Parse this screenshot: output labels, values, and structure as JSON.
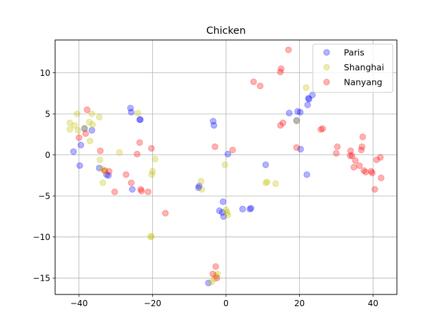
{
  "chart_data": {
    "type": "scatter",
    "title": "Chicken",
    "xlabel": "",
    "ylabel": "",
    "xlim": [
      -46.5,
      46.5
    ],
    "ylim": [
      -17,
      14
    ],
    "xticks": [
      -40,
      -20,
      0,
      20,
      40
    ],
    "yticks": [
      -15,
      -10,
      -5,
      0,
      5,
      10
    ],
    "grid": true,
    "legend_position": "top-right",
    "series": [
      {
        "name": "Paris",
        "color": "#0000ff",
        "points": [
          [
            -41.5,
            0.4
          ],
          [
            -39.8,
            -1.3
          ],
          [
            -39.5,
            1.2
          ],
          [
            -38.5,
            3.2
          ],
          [
            -36.5,
            3.0
          ],
          [
            -34.5,
            -1.6
          ],
          [
            -32.5,
            -2.4
          ],
          [
            -32.0,
            -2.5
          ],
          [
            -26.0,
            5.7
          ],
          [
            -25.8,
            5.2
          ],
          [
            -25.5,
            -4.2
          ],
          [
            -23.5,
            4.3
          ],
          [
            -23.3,
            4.3
          ],
          [
            -7.5,
            -4.0
          ],
          [
            -7.3,
            -3.8
          ],
          [
            -3.5,
            4.1
          ],
          [
            -3.3,
            3.6
          ],
          [
            -1.8,
            -6.8
          ],
          [
            -1.0,
            -7.0
          ],
          [
            -0.8,
            -5.7
          ],
          [
            -0.7,
            -7.5
          ],
          [
            0.5,
            0.1
          ],
          [
            4.5,
            -6.6
          ],
          [
            6.5,
            -6.6
          ],
          [
            6.8,
            -6.5
          ],
          [
            10.8,
            -1.2
          ],
          [
            17.2,
            5.1
          ],
          [
            19.2,
            4.2
          ],
          [
            19.5,
            5.3
          ],
          [
            20.2,
            5.2
          ],
          [
            20.3,
            0.7
          ],
          [
            22.0,
            -2.4
          ],
          [
            22.2,
            6.1
          ],
          [
            22.4,
            6.9
          ],
          [
            22.6,
            6.8
          ],
          [
            23.5,
            7.3
          ],
          [
            -4.8,
            -15.6
          ]
        ]
      },
      {
        "name": "Shanghai",
        "color": "#bfbf00",
        "points": [
          [
            -42.5,
            3.9
          ],
          [
            -42.5,
            3.1
          ],
          [
            -41.2,
            3.6
          ],
          [
            -40.5,
            5.0
          ],
          [
            -40.3,
            3.0
          ],
          [
            -38.5,
            3.3
          ],
          [
            -37.2,
            4.0
          ],
          [
            -37.0,
            1.7
          ],
          [
            -36.5,
            5.0
          ],
          [
            -36.3,
            3.7
          ],
          [
            -34.5,
            4.6
          ],
          [
            -34.3,
            -0.6
          ],
          [
            -33.8,
            -1.7
          ],
          [
            -33.5,
            -3.4
          ],
          [
            -33.0,
            -2.0
          ],
          [
            -29.0,
            0.3
          ],
          [
            -24.0,
            5.1
          ],
          [
            -20.5,
            -10.0
          ],
          [
            -20.3,
            -9.9
          ],
          [
            -20.0,
            -2.0
          ],
          [
            -20.2,
            -2.4
          ],
          [
            -19.3,
            -0.5
          ],
          [
            -6.8,
            -3.2
          ],
          [
            -6.6,
            -4.2
          ],
          [
            -4.0,
            -15.5
          ],
          [
            -3.2,
            -15.1
          ],
          [
            -2.8,
            -14.7
          ],
          [
            -2.3,
            -14.5
          ],
          [
            -0.3,
            -1.2
          ],
          [
            0.0,
            -6.7
          ],
          [
            0.3,
            -7.0
          ],
          [
            0.5,
            -7.3
          ],
          [
            10.8,
            -3.4
          ],
          [
            11.2,
            -3.3
          ],
          [
            13.5,
            -3.5
          ],
          [
            19.2,
            4.1
          ],
          [
            21.8,
            8.2
          ]
        ]
      },
      {
        "name": "Nanyang",
        "color": "#ff0000",
        "points": [
          [
            -40.0,
            2.1
          ],
          [
            -38.2,
            2.6
          ],
          [
            -37.8,
            5.5
          ],
          [
            -34.2,
            0.5
          ],
          [
            -33.0,
            -1.9
          ],
          [
            -31.8,
            -2.0
          ],
          [
            -30.3,
            -4.5
          ],
          [
            -27.2,
            -2.4
          ],
          [
            -25.8,
            -3.4
          ],
          [
            -24.2,
            0.1
          ],
          [
            -23.5,
            1.5
          ],
          [
            -23.2,
            -4.2
          ],
          [
            -23.0,
            -4.4
          ],
          [
            -21.2,
            -4.5
          ],
          [
            -20.3,
            0.8
          ],
          [
            -16.5,
            -7.1
          ],
          [
            -3.0,
            1.0
          ],
          [
            -3.6,
            -14.5
          ],
          [
            -2.8,
            -13.6
          ],
          [
            -2.5,
            -15.0
          ],
          [
            1.8,
            0.6
          ],
          [
            7.5,
            8.9
          ],
          [
            9.3,
            8.4
          ],
          [
            14.8,
            10.1
          ],
          [
            15.0,
            10.5
          ],
          [
            15.5,
            3.9
          ],
          [
            14.8,
            3.6
          ],
          [
            17.0,
            12.8
          ],
          [
            19.2,
            0.9
          ],
          [
            25.8,
            3.1
          ],
          [
            26.3,
            3.2
          ],
          [
            30.0,
            0.2
          ],
          [
            30.3,
            1.0
          ],
          [
            33.8,
            -0.1
          ],
          [
            33.9,
            0.5
          ],
          [
            34.3,
            -0.1
          ],
          [
            34.8,
            -1.5
          ],
          [
            35.2,
            -0.7
          ],
          [
            36.3,
            -1.3
          ],
          [
            36.8,
            0.6
          ],
          [
            37.0,
            1.0
          ],
          [
            37.2,
            2.2
          ],
          [
            37.5,
            -1.9
          ],
          [
            38.0,
            -2.1
          ],
          [
            39.5,
            -2.0
          ],
          [
            39.8,
            -2.2
          ],
          [
            40.5,
            -4.2
          ],
          [
            41.0,
            -0.6
          ],
          [
            42.0,
            -0.3
          ],
          [
            42.2,
            -2.8
          ]
        ]
      }
    ]
  }
}
